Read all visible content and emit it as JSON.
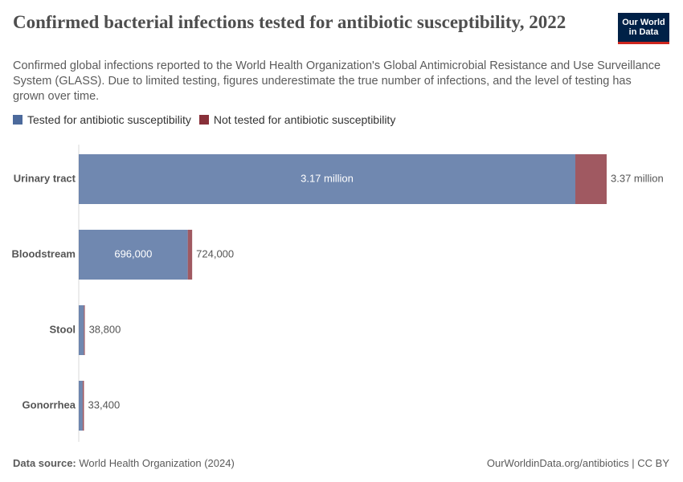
{
  "chart_data": {
    "type": "stacked-bar-horizontal",
    "title": "Confirmed bacterial infections tested for antibiotic susceptibility, 2022",
    "subtitle": "Confirmed global infections reported to the World Health Organization's Global Antimicrobial Resistance and Use Surveillance System (GLASS). Due to limited testing, figures underestimate the true number of infections, and the level of testing has grown over time.",
    "logo": "Our World in Data",
    "categories": [
      "Urinary tract",
      "Bloodstream",
      "Stool",
      "Gonorrhea"
    ],
    "series": [
      {
        "name": "Tested for antibiotic susceptibility",
        "color": "#4c6a9c",
        "values": [
          3170000,
          696000,
          33000,
          25000
        ],
        "value_labels": [
          "3.17 million",
          "696,000",
          null,
          null
        ]
      },
      {
        "name": "Not tested for antibiotic susceptibility",
        "color": "#883039",
        "values": [
          200000,
          28000,
          5800,
          8400
        ]
      }
    ],
    "totals": [
      3370000,
      724000,
      38800,
      33400
    ],
    "total_labels": [
      "3.37 million",
      "724,000",
      "38,800",
      "33,400"
    ],
    "source_label": "Data source:",
    "source": "World Health Organization (2024)",
    "credit": "OurWorldinData.org/antibiotics | CC BY"
  }
}
